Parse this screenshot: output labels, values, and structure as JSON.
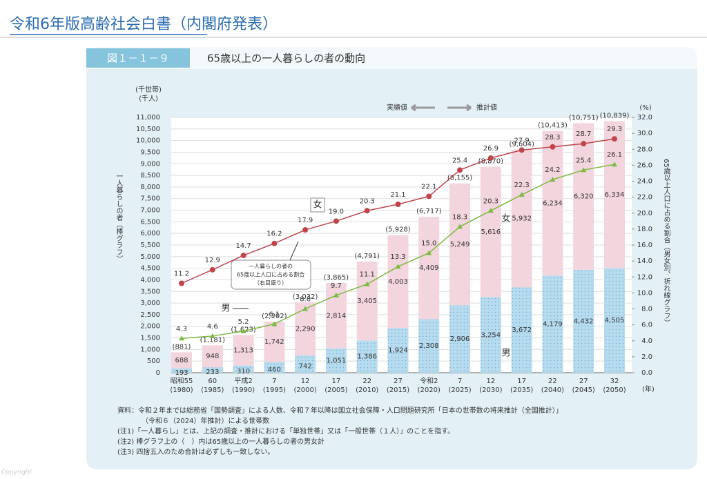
{
  "header": {
    "title": "令和6年版高齢社会白書（内閣府発表）"
  },
  "figure": {
    "number": "図１－１－９",
    "notes": [
      "資料：令和２年までは総務省「国勢調査」による人数、令和７年以降は国立社会保障・人口問題研究所「日本の世帯数の将来推計（全国推計）」",
      "（令和６（2024）年推計）による世帯数",
      "(注1)「一人暮らし」とは、上記の調査・推計における「単独世帯」又は「一般世帯（１人）」のことを指す。",
      "(注2) 棒グラフ上の（　）内は65歳以上の一人暮らしの者の男女計",
      "(注3) 四捨五入のため合計は必ずしも一致しない。"
    ],
    "copyright": "Copyright"
  },
  "chart_data": {
    "type": "bar",
    "title": "65歳以上の一人暮らしの者の動向",
    "y_units": [
      "(千世帯)",
      "(千人)"
    ],
    "y2_unit": "(%)",
    "x_unit": "(年)",
    "y_label": "一人暮らしの者（棒グラフ）",
    "y2_label": "65歳以上人口に占める割合（男女別、折れ線グラフ）",
    "annotations": {
      "actual": "実績値",
      "projection": "推計値",
      "female_line": "女",
      "male_line": "男",
      "female_bar": "女",
      "male_bar": "男",
      "callout": [
        "一人暮らしの者の",
        "65歳以上人口に占める割合",
        "（右目盛り）"
      ]
    },
    "categories": [
      "昭和55",
      "60",
      "平成2",
      "7",
      "12",
      "17",
      "22",
      "27",
      "令和2",
      "7",
      "12",
      "17",
      "22",
      "27",
      "32"
    ],
    "x_sublabels": [
      "(1980)",
      "(1985)",
      "(1990)",
      "(1995)",
      "(2000)",
      "(2005)",
      "(2010)",
      "(2015)",
      "(2020)",
      "(2025)",
      "(2030)",
      "(2035)",
      "(2040)",
      "(2045)",
      "(2050)"
    ],
    "total_labels": [
      "(881)",
      "(1,181)",
      "(1,623)",
      "(2,202)",
      "(3,032)",
      "(3,865)",
      "(4,791)",
      "(5,928)",
      "(6,717)",
      "(8,155)",
      "(8,870)",
      "(9,604)",
      "(10,413)",
      "(10,751)",
      "(10,839)"
    ],
    "series": [
      {
        "name": "男",
        "type": "bar",
        "color": "#b8dcef",
        "values": [
          193,
          233,
          310,
          460,
          742,
          1051,
          1386,
          1924,
          2308,
          2906,
          3254,
          3672,
          4179,
          4432,
          4505
        ],
        "value_labels": [
          "193",
          "233",
          "310",
          "460",
          "742",
          "1,051",
          "1,386",
          "1,924",
          "2,308",
          "2,906",
          "3,254",
          "3,672",
          "4,179",
          "4,432",
          "4,505"
        ]
      },
      {
        "name": "女",
        "type": "bar",
        "color": "#f3d5de",
        "values": [
          688,
          948,
          1313,
          1742,
          2290,
          2814,
          3405,
          4003,
          4409,
          5249,
          5616,
          5932,
          6234,
          6320,
          6334
        ],
        "value_labels": [
          "688",
          "948",
          "1,313",
          "1,742",
          "2,290",
          "2,814",
          "3,405",
          "4,003",
          "4,409",
          "5,249",
          "5,616",
          "5,932",
          "6,234",
          "6,320",
          "6,334"
        ]
      },
      {
        "name": "女",
        "type": "line",
        "axis": "y2",
        "color": "#c0444a",
        "values": [
          11.2,
          12.9,
          14.7,
          16.2,
          17.9,
          19.0,
          20.3,
          21.1,
          22.1,
          25.4,
          26.9,
          27.9,
          28.3,
          28.7,
          29.3
        ],
        "value_labels": [
          "11.2",
          "12.9",
          "14.7",
          "16.2",
          "17.9",
          "19.0",
          "20.3",
          "21.1",
          "22.1",
          "25.4",
          "26.9",
          "27.9",
          "28.3",
          "28.7",
          "29.3"
        ]
      },
      {
        "name": "男",
        "type": "line",
        "axis": "y2",
        "color": "#7cbb3f",
        "values": [
          4.3,
          4.6,
          5.2,
          6.1,
          8.0,
          9.7,
          11.1,
          13.3,
          15.0,
          18.3,
          20.3,
          22.3,
          24.2,
          25.4,
          26.1
        ],
        "value_labels": [
          "4.3",
          "4.6",
          "5.2",
          "6.1",
          "8.0",
          "9.7",
          "11.1",
          "13.3",
          "15.0",
          "18.3",
          "20.3",
          "22.3",
          "24.2",
          "25.4",
          "26.1"
        ]
      }
    ],
    "ylim": [
      0,
      11000
    ],
    "yticks": [
      0,
      500,
      {
        "value": 1000,
        "label": "1,000"
      },
      {
        "value": 1500,
        "label": "1,500"
      },
      {
        "value": 2000,
        "label": "2,000"
      },
      {
        "value": 2500,
        "label": "2,500"
      },
      {
        "value": 3000,
        "label": "3,000"
      },
      {
        "value": 3500,
        "label": "3,500"
      },
      {
        "value": 4000,
        "label": "4,000"
      },
      {
        "value": 4500,
        "label": "4,500"
      },
      {
        "value": 5000,
        "label": "5,000"
      },
      {
        "value": 5500,
        "label": "5,500"
      },
      {
        "value": 6000,
        "label": "6,000"
      },
      {
        "value": 6500,
        "label": "6,500"
      },
      {
        "value": 7000,
        "label": "7,000"
      },
      {
        "value": 7500,
        "label": "7,500"
      },
      {
        "value": 8000,
        "label": "8,000"
      },
      {
        "value": 8500,
        "label": "8,500"
      },
      {
        "value": 9000,
        "label": "9,000"
      },
      {
        "value": 9500,
        "label": "9,500"
      },
      {
        "value": 10000,
        "label": "10,000"
      },
      {
        "value": 10500,
        "label": "10,500"
      },
      {
        "value": 11000,
        "label": "11,000"
      }
    ],
    "y2lim": [
      0,
      32
    ],
    "y2ticks": [
      {
        "value": 0,
        "label": "0.0"
      },
      {
        "value": 2,
        "label": "2.0"
      },
      {
        "value": 4,
        "label": "4.0"
      },
      {
        "value": 6,
        "label": "6.0"
      },
      {
        "value": 8,
        "label": "8.0"
      },
      {
        "value": 10,
        "label": "10.0"
      },
      {
        "value": 12,
        "label": "12.0"
      },
      {
        "value": 14,
        "label": "14.0"
      },
      {
        "value": 16,
        "label": "16.0"
      },
      {
        "value": 18,
        "label": "18.0"
      },
      {
        "value": 20,
        "label": "20.0"
      },
      {
        "value": 22,
        "label": "22.0"
      },
      {
        "value": 24,
        "label": "24.0"
      },
      {
        "value": 26,
        "label": "26.0"
      },
      {
        "value": 28,
        "label": "28.0"
      },
      {
        "value": 30,
        "label": "30.0"
      },
      {
        "value": 32,
        "label": "32.0"
      }
    ],
    "grid": true
  }
}
